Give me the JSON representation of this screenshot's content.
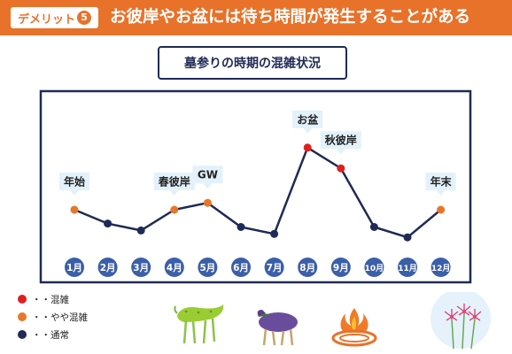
{
  "header": {
    "tag_label": "デメリット",
    "tag_number": "5",
    "title": "お彼岸やお盆には待ち時間が発生することがある"
  },
  "colors": {
    "accent": "#e8722a",
    "navy": "#1f2a55",
    "month_badge": "#3b5fa8",
    "congested": "#e02020",
    "slightly_congested": "#e8762a",
    "normal": "#1f2a55",
    "label_bg": "#e3f1fb"
  },
  "chart_data": {
    "type": "line",
    "title": "墓参りの時期の混雑状況",
    "categories": [
      "1月",
      "2月",
      "3月",
      "4月",
      "5月",
      "6月",
      "7月",
      "8月",
      "9月",
      "10月",
      "11月",
      "12月"
    ],
    "values": [
      5,
      3,
      2,
      5,
      6,
      2.5,
      1.5,
      14,
      11,
      2.5,
      1,
      5
    ],
    "ylim": [
      0,
      20
    ],
    "levels": [
      "slightly",
      "normal",
      "normal",
      "slightly",
      "slightly",
      "normal",
      "normal",
      "congested",
      "congested",
      "normal",
      "normal",
      "slightly"
    ],
    "annotations": [
      "年始",
      "",
      "",
      "春彼岸",
      "GW",
      "",
      "",
      "お盆",
      "秋彼岸",
      "",
      "",
      "年末"
    ],
    "grid": false
  },
  "legend": [
    {
      "label": "・・混雑",
      "color": "#e02020"
    },
    {
      "label": "・・やや混雑",
      "color": "#e8762a"
    },
    {
      "label": "・・通常",
      "color": "#1f2a55"
    }
  ],
  "illustrations": [
    "cucumber-horse-icon",
    "eggplant-cow-icon",
    "welcome-fire-icon",
    "spider-lily-icon"
  ]
}
